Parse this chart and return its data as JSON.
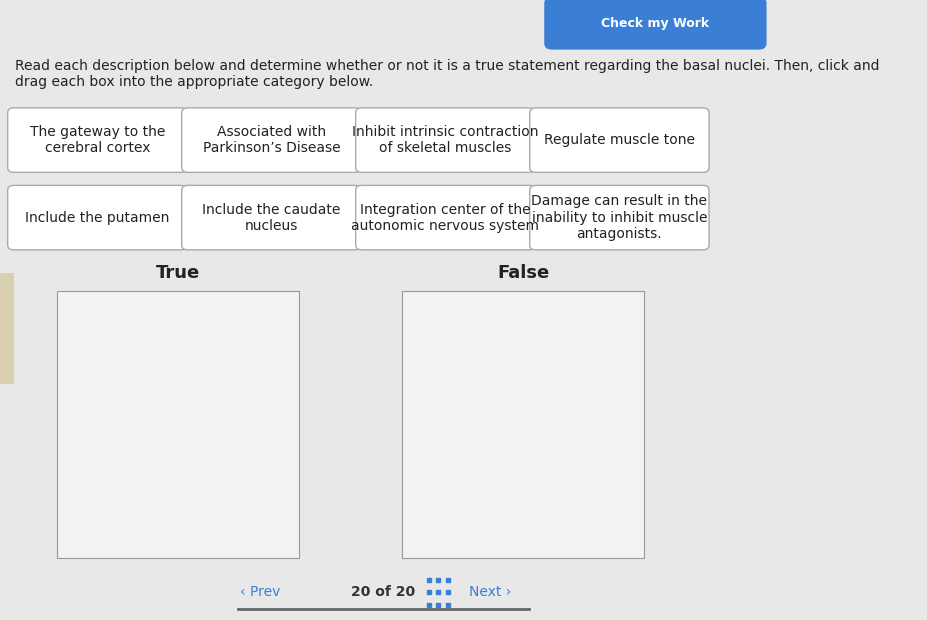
{
  "bg_color": "#e8e8e8",
  "title_text": "Read each description below and determine whether or not it is a true statement regarding the basal nuclei. Then, click and\ndrag each box into the appropriate category below.",
  "title_fontsize": 11,
  "button_color": "#3a7fd5",
  "button_text": "Check my Work",
  "card_bg": "#ffffff",
  "card_border": "#aaaaaa",
  "row1_cards": [
    {
      "text": "The gateway to the\ncerebral cortex"
    },
    {
      "text": "Associated with\nParkinson’s Disease"
    },
    {
      "text": "Inhibit intrinsic contraction\nof skeletal muscles"
    },
    {
      "text": "Regulate muscle tone"
    }
  ],
  "row2_cards": [
    {
      "text": "Include the putamen"
    },
    {
      "text": "Include the caudate\nnucleus"
    },
    {
      "text": "Integration center of the\nautonomic nervous system"
    },
    {
      "text": "Damage can result in the\ninability to inhibit muscle\nantagonists."
    }
  ],
  "true_label": "True",
  "false_label": "False",
  "nav_text": "20 of 20",
  "prev_text": "‹ Prev",
  "next_text": "Next ›",
  "drop_box_color": "#f2f2f2",
  "drop_box_border": "#999999",
  "nav_color": "#3a7fd5",
  "label_fontsize": 13,
  "card_fontsize": 10,
  "separator_color": "#666666",
  "left_accent_color": "#d8d0b0"
}
